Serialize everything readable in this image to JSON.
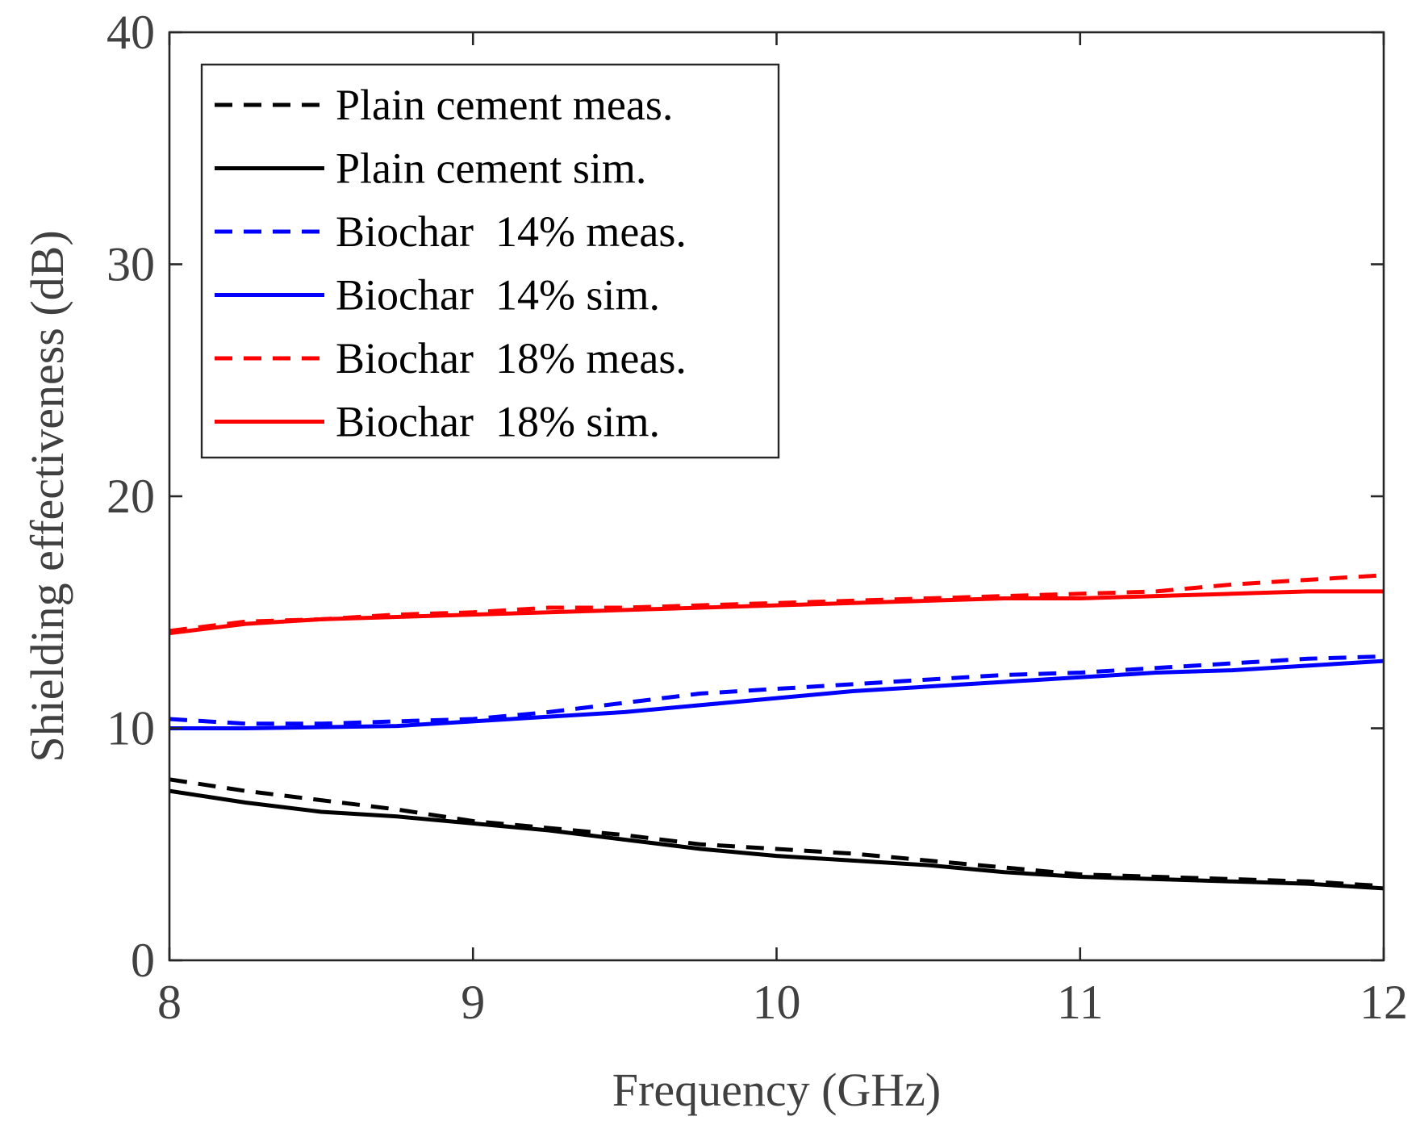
{
  "chart_data": {
    "type": "line",
    "title": "",
    "xlabel": "Frequency (GHz)",
    "ylabel": "Shielding effectiveness (dB)",
    "xlim": [
      8,
      12
    ],
    "ylim": [
      0,
      40
    ],
    "xticks": [
      8,
      9,
      10,
      11,
      12
    ],
    "yticks": [
      0,
      10,
      20,
      30,
      40
    ],
    "xtick_labels": [
      "8",
      "9",
      "10",
      "11",
      "12"
    ],
    "ytick_labels": [
      "0",
      "10",
      "20",
      "30",
      "40"
    ],
    "legend_position": "top-left",
    "series": [
      {
        "name": "Plain cement meas.",
        "color": "#000000",
        "style": "dashed",
        "x": [
          8.0,
          8.25,
          8.5,
          8.75,
          9.0,
          9.25,
          9.5,
          9.75,
          10.0,
          10.25,
          10.5,
          10.75,
          11.0,
          11.25,
          11.5,
          11.75,
          12.0
        ],
        "y": [
          7.8,
          7.3,
          6.9,
          6.5,
          6.0,
          5.7,
          5.4,
          5.0,
          4.8,
          4.6,
          4.3,
          4.0,
          3.7,
          3.6,
          3.5,
          3.4,
          3.2
        ]
      },
      {
        "name": "Plain cement sim.",
        "color": "#000000",
        "style": "solid",
        "x": [
          8.0,
          8.25,
          8.5,
          8.75,
          9.0,
          9.25,
          9.5,
          9.75,
          10.0,
          10.25,
          10.5,
          10.75,
          11.0,
          11.25,
          11.5,
          11.75,
          12.0
        ],
        "y": [
          7.3,
          6.8,
          6.4,
          6.2,
          5.9,
          5.6,
          5.2,
          4.8,
          4.5,
          4.3,
          4.1,
          3.8,
          3.6,
          3.5,
          3.4,
          3.3,
          3.1
        ]
      },
      {
        "name": "Biochar  14% meas.",
        "color": "#0000ff",
        "style": "dashed",
        "x": [
          8.0,
          8.25,
          8.5,
          8.75,
          9.0,
          9.25,
          9.5,
          9.75,
          10.0,
          10.25,
          10.5,
          10.75,
          11.0,
          11.25,
          11.5,
          11.75,
          12.0
        ],
        "y": [
          10.4,
          10.2,
          10.2,
          10.3,
          10.4,
          10.7,
          11.1,
          11.5,
          11.7,
          11.9,
          12.1,
          12.3,
          12.4,
          12.6,
          12.8,
          13.0,
          13.1
        ]
      },
      {
        "name": "Biochar  14% sim.",
        "color": "#0000ff",
        "style": "solid",
        "x": [
          8.0,
          8.25,
          8.5,
          8.75,
          9.0,
          9.25,
          9.5,
          9.75,
          10.0,
          10.25,
          10.5,
          10.75,
          11.0,
          11.25,
          11.5,
          11.75,
          12.0
        ],
        "y": [
          10.0,
          10.0,
          10.05,
          10.1,
          10.3,
          10.5,
          10.7,
          11.0,
          11.3,
          11.6,
          11.8,
          12.0,
          12.2,
          12.4,
          12.5,
          12.7,
          12.9
        ]
      },
      {
        "name": "Biochar  18% meas.",
        "color": "#ff0000",
        "style": "dashed",
        "x": [
          8.0,
          8.25,
          8.5,
          8.75,
          9.0,
          9.25,
          9.5,
          9.75,
          10.0,
          10.25,
          10.5,
          10.75,
          11.0,
          11.25,
          11.5,
          11.75,
          12.0
        ],
        "y": [
          14.2,
          14.6,
          14.7,
          14.9,
          15.0,
          15.2,
          15.2,
          15.3,
          15.4,
          15.5,
          15.6,
          15.7,
          15.8,
          15.9,
          16.2,
          16.4,
          16.6
        ]
      },
      {
        "name": "Biochar  18% sim.",
        "color": "#ff0000",
        "style": "solid",
        "x": [
          8.0,
          8.25,
          8.5,
          8.75,
          9.0,
          9.25,
          9.5,
          9.75,
          10.0,
          10.25,
          10.5,
          10.75,
          11.0,
          11.25,
          11.5,
          11.75,
          12.0
        ],
        "y": [
          14.1,
          14.5,
          14.7,
          14.8,
          14.9,
          15.0,
          15.1,
          15.2,
          15.3,
          15.4,
          15.5,
          15.6,
          15.6,
          15.7,
          15.8,
          15.9,
          15.9
        ]
      }
    ]
  }
}
